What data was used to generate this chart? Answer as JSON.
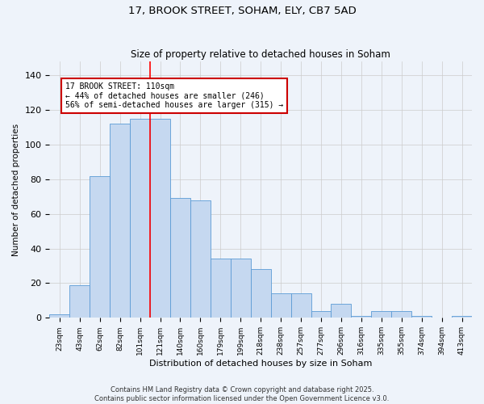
{
  "title": "17, BROOK STREET, SOHAM, ELY, CB7 5AD",
  "subtitle": "Size of property relative to detached houses in Soham",
  "xlabel": "Distribution of detached houses by size in Soham",
  "ylabel": "Number of detached properties",
  "categories": [
    "23sqm",
    "43sqm",
    "62sqm",
    "82sqm",
    "101sqm",
    "121sqm",
    "140sqm",
    "160sqm",
    "179sqm",
    "199sqm",
    "218sqm",
    "238sqm",
    "257sqm",
    "277sqm",
    "296sqm",
    "316sqm",
    "335sqm",
    "355sqm",
    "374sqm",
    "394sqm",
    "413sqm"
  ],
  "values": [
    2,
    19,
    82,
    112,
    115,
    115,
    69,
    68,
    34,
    34,
    28,
    14,
    14,
    4,
    8,
    1,
    4,
    4,
    1,
    0,
    1
  ],
  "bar_color": "#c5d8f0",
  "bar_edge_color": "#5b9bd5",
  "annotation_text": "17 BROOK STREET: 110sqm\n← 44% of detached houses are smaller (246)\n56% of semi-detached houses are larger (315) →",
  "annotation_box_color": "#ffffff",
  "annotation_box_edge_color": "#cc0000",
  "red_line_x": 4.5,
  "ylim": [
    0,
    148
  ],
  "yticks": [
    0,
    20,
    40,
    60,
    80,
    100,
    120,
    140
  ],
  "grid_color": "#cccccc",
  "background_color": "#eef3fa",
  "footer_line1": "Contains HM Land Registry data © Crown copyright and database right 2025.",
  "footer_line2": "Contains public sector information licensed under the Open Government Licence v3.0."
}
